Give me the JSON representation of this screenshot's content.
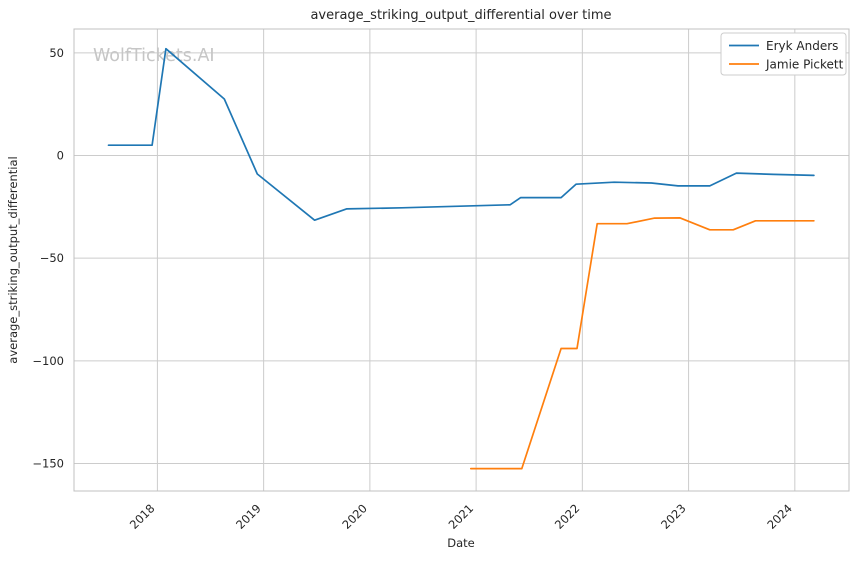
{
  "watermark": "WolfTickets.AI",
  "chart_data": {
    "type": "line",
    "title": "average_striking_output_differential over time",
    "xlabel": "Date",
    "ylabel": "average_striking_output_differential",
    "grid": true,
    "legend_position": "upper right",
    "x_axis": {
      "range": [
        2017.215,
        2024.51
      ],
      "ticks": [
        {
          "label": "2018",
          "value": 2018
        },
        {
          "label": "2019",
          "value": 2019
        },
        {
          "label": "2020",
          "value": 2020
        },
        {
          "label": "2021",
          "value": 2021
        },
        {
          "label": "2022",
          "value": 2022
        },
        {
          "label": "2023",
          "value": 2023
        },
        {
          "label": "2024",
          "value": 2024
        }
      ]
    },
    "y_axis": {
      "range": [
        -163.4,
        61.6
      ],
      "ticks": [
        {
          "label": "50",
          "value": 50
        },
        {
          "label": "0",
          "value": 0
        },
        {
          "label": "−50",
          "value": -50
        },
        {
          "label": "−100",
          "value": -100
        },
        {
          "label": "−150",
          "value": -150
        }
      ]
    },
    "series": [
      {
        "name": "Eryk Anders",
        "color": "#1f77b4",
        "points": [
          [
            2017.54,
            5
          ],
          [
            2017.95,
            5
          ],
          [
            2018.08,
            52
          ],
          [
            2018.63,
            27.5
          ],
          [
            2018.94,
            -9
          ],
          [
            2019.48,
            -31.5
          ],
          [
            2019.78,
            -26
          ],
          [
            2020.3,
            -25.5
          ],
          [
            2021.32,
            -24
          ],
          [
            2021.42,
            -20.5
          ],
          [
            2021.8,
            -20.5
          ],
          [
            2021.94,
            -14
          ],
          [
            2022.3,
            -13
          ],
          [
            2022.65,
            -13.4
          ],
          [
            2022.9,
            -14.8
          ],
          [
            2023.2,
            -14.8
          ],
          [
            2023.45,
            -8.6
          ],
          [
            2023.8,
            -9.2
          ],
          [
            2024.18,
            -9.7
          ]
        ]
      },
      {
        "name": "Jamie Pickett",
        "color": "#ff7f0e",
        "points": [
          [
            2020.95,
            -152.5
          ],
          [
            2021.43,
            -152.5
          ],
          [
            2021.8,
            -94
          ],
          [
            2021.95,
            -94
          ],
          [
            2022.14,
            -33.2
          ],
          [
            2022.42,
            -33.2
          ],
          [
            2022.68,
            -30.5
          ],
          [
            2022.92,
            -30.4
          ],
          [
            2023.2,
            -36.2
          ],
          [
            2023.42,
            -36.2
          ],
          [
            2023.63,
            -31.8
          ],
          [
            2024.18,
            -31.8
          ]
        ]
      }
    ],
    "colors": {
      "grid": "#cccccc",
      "spine": "#c0c0c0",
      "text": "#262626",
      "watermark": "#c6c6c6",
      "background": "#ffffff"
    }
  }
}
